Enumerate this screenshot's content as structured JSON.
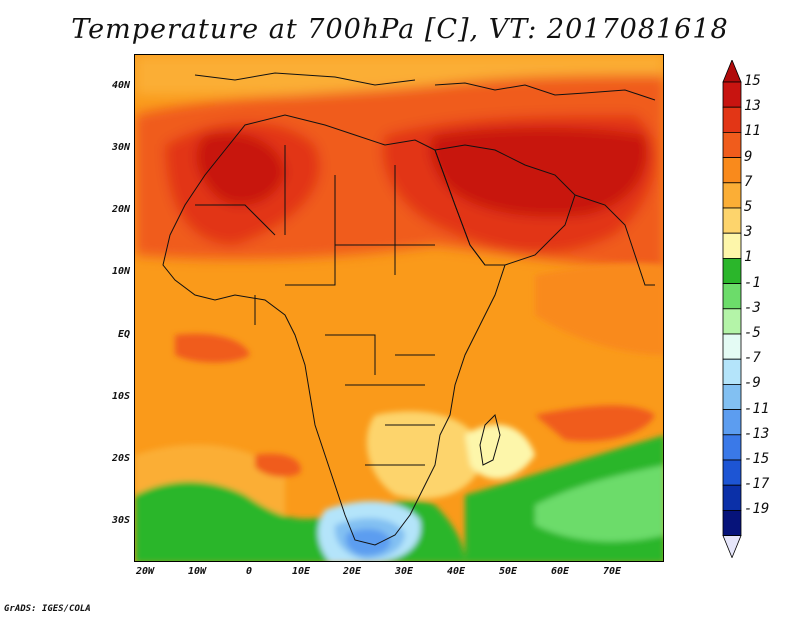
{
  "title": "Temperature at 700hPa [C], VT: 2017081618",
  "credit": "GrADS: IGES/COLA",
  "map": {
    "lat_labels": [
      "40N",
      "30N",
      "20N",
      "10N",
      "EQ",
      "10S",
      "20S",
      "30S"
    ],
    "lon_labels": [
      "20W",
      "10W",
      "0",
      "10E",
      "20E",
      "30E",
      "40E",
      "50E",
      "60E",
      "70E"
    ]
  },
  "colorbar": {
    "labels": [
      "15",
      "13",
      "11",
      "9",
      "7",
      "5",
      "3",
      "1",
      "-1",
      "-3",
      "-5",
      "-7",
      "-9",
      "-11",
      "-13",
      "-15",
      "-17",
      "-19"
    ],
    "colors": [
      "#c81410",
      "#e23616",
      "#f05c1c",
      "#f98a1c",
      "#fbae36",
      "#fdd46c",
      "#fdf6aa",
      "#2bb62b",
      "#6cdc6a",
      "#b4f4a8",
      "#e4fbf4",
      "#b4e4fa",
      "#82c0f2",
      "#5c9df0",
      "#3a79e8",
      "#1d55d4",
      "#0b30a8",
      "#06137a"
    ],
    "top_arrow_color": "#b00c0c",
    "bottom_arrow_color": "#e6e6fa"
  }
}
